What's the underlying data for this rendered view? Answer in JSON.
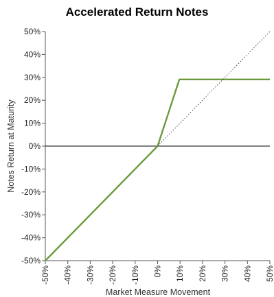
{
  "chart_data": {
    "type": "line",
    "title": "Accelerated Return Notes",
    "xlabel": "Market Measure Movement",
    "ylabel": "Notes Return at Maturity",
    "xlim": [
      -50,
      50
    ],
    "ylim": [
      -50,
      50
    ],
    "x_ticks": [
      -50,
      -40,
      -30,
      -20,
      -10,
      0,
      10,
      20,
      30,
      40,
      50
    ],
    "y_ticks": [
      -50,
      -40,
      -30,
      -20,
      -10,
      0,
      10,
      20,
      30,
      40,
      50
    ],
    "x_tick_labels": [
      "-50%",
      "-40%",
      "-30%",
      "-20%",
      "-10%",
      "0%",
      "10%",
      "20%",
      "30%",
      "40%",
      "50%"
    ],
    "y_tick_labels": [
      "-50%",
      "-40%",
      "-30%",
      "-20%",
      "-10%",
      "0%",
      "10%",
      "20%",
      "30%",
      "40%",
      "50%"
    ],
    "grid": false,
    "series": [
      {
        "x": [
          -50,
          0,
          9.7,
          50
        ],
        "y": [
          -50,
          0,
          29.1,
          29.1
        ],
        "color": "#6a9a3a",
        "style": "solid"
      },
      {
        "x": [
          0,
          50
        ],
        "y": [
          0,
          50
        ],
        "color": "#444444",
        "style": "dotted"
      }
    ],
    "reference_lines": [
      {
        "y": 0,
        "color": "#000000"
      }
    ]
  }
}
